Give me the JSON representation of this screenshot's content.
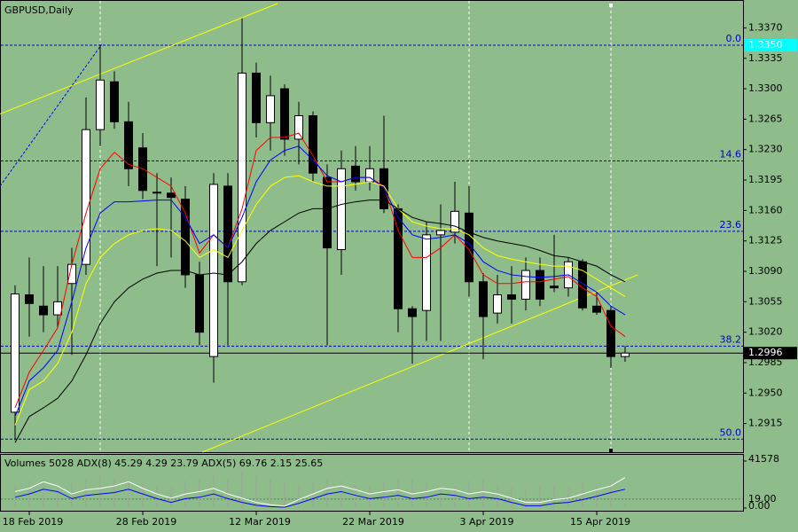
{
  "chart_data": [
    {
      "type": "candlestick",
      "title": "GBPUSD,Daily",
      "categories": [
        null,
        "18 Feb 2019",
        null,
        null,
        null,
        null,
        null,
        null,
        null,
        "28 Feb 2019",
        null,
        null,
        null,
        null,
        null,
        null,
        null,
        "12 Mar 2019",
        null,
        null,
        null,
        null,
        null,
        null,
        null,
        "22 Mar 2019",
        null,
        null,
        null,
        null,
        null,
        null,
        null,
        "3 Apr 2019",
        null,
        null,
        null,
        null,
        null,
        null,
        null,
        "15 Apr 2019",
        null,
        null
      ],
      "open": [
        1.2928,
        1.3063,
        1.305,
        1.304,
        1.3076,
        1.3098,
        1.3253,
        1.3308,
        1.3262,
        1.3232,
        1.3181,
        1.318,
        1.3173,
        1.3086,
        1.2992,
        1.3188,
        1.3078,
        1.3318,
        1.3261,
        1.33,
        1.3242,
        1.3269,
        1.3198,
        1.3115,
        1.3211,
        1.3193,
        1.3208,
        1.3162,
        1.3047,
        1.3045,
        1.3132,
        1.3135,
        1.3157,
        1.3078,
        1.3042,
        1.3063,
        1.3058,
        1.3091,
        1.3073,
        1.3071,
        1.3101,
        1.305,
        1.3045,
        1.2992
      ],
      "high": [
        1.3074,
        1.3106,
        1.3096,
        1.3096,
        1.3117,
        1.329,
        1.3351,
        1.332,
        1.3285,
        1.3249,
        1.3203,
        1.3198,
        1.3188,
        1.3101,
        1.3203,
        1.3203,
        1.3381,
        1.333,
        1.3315,
        1.3305,
        1.3285,
        1.3274,
        1.3213,
        1.3229,
        1.3234,
        1.3234,
        1.3269,
        1.3167,
        1.305,
        1.3147,
        1.3167,
        1.3193,
        1.3188,
        1.3088,
        1.3086,
        1.3096,
        1.3106,
        1.3106,
        1.3132,
        1.3106,
        1.3104,
        1.3066,
        1.305,
        1.3004
      ],
      "low": [
        1.2896,
        1.3015,
        1.302,
        1.3025,
        1.2994,
        1.3086,
        1.3234,
        1.3254,
        1.3188,
        1.3173,
        1.3096,
        1.3106,
        1.3071,
        1.3005,
        1.2962,
        1.3005,
        1.3074,
        1.3244,
        1.3229,
        1.3223,
        1.3213,
        1.3193,
        1.3005,
        1.3086,
        1.3183,
        1.3183,
        1.3157,
        1.302,
        1.2984,
        1.301,
        1.301,
        1.3122,
        1.3061,
        1.2989,
        1.303,
        1.303,
        1.3045,
        1.305,
        1.3066,
        1.3061,
        1.3045,
        1.304,
        1.2979,
        1.2986
      ],
      "close": [
        1.3064,
        1.3053,
        1.304,
        1.3055,
        1.3098,
        1.3253,
        1.331,
        1.3262,
        1.3208,
        1.3183,
        1.318,
        1.3175,
        1.3086,
        1.302,
        1.319,
        1.3078,
        1.3318,
        1.3261,
        1.3292,
        1.3242,
        1.3269,
        1.3203,
        1.3117,
        1.3208,
        1.3193,
        1.3208,
        1.3162,
        1.3047,
        1.3038,
        1.3132,
        1.3137,
        1.3159,
        1.3078,
        1.3038,
        1.3063,
        1.3058,
        1.3091,
        1.3058,
        1.3071,
        1.3101,
        1.3048,
        1.3043,
        1.2992,
        1.2996
      ],
      "up_color": "#ffffff",
      "down_color": "#000000",
      "series": [
        {
          "color": "#ff0000",
          "values": [
            1.2933,
            1.2974,
            1.2999,
            1.3025,
            1.3098,
            1.3157,
            1.3208,
            1.3227,
            1.3213,
            1.3208,
            1.3198,
            1.3188,
            1.3157,
            1.3111,
            1.3132,
            1.3117,
            1.3162,
            1.3229,
            1.3244,
            1.3244,
            1.3249,
            1.3223,
            1.3193,
            1.3193,
            1.3198,
            1.3198,
            1.3188,
            1.3137,
            1.3106,
            1.3106,
            1.3117,
            1.3132,
            1.3115,
            1.3086,
            1.3076,
            1.3076,
            1.3078,
            1.3078,
            1.3081,
            1.3084,
            1.3071,
            1.3061,
            1.3027,
            1.3015
          ]
        },
        {
          "color": "#0000ff",
          "values": [
            1.2923,
            1.2964,
            1.2979,
            1.2999,
            1.3055,
            1.3117,
            1.3157,
            1.317,
            1.317,
            1.3171,
            1.3172,
            1.3172,
            1.3152,
            1.3122,
            1.3132,
            1.3117,
            1.3152,
            1.3193,
            1.3218,
            1.3229,
            1.3234,
            1.3218,
            1.32,
            1.3193,
            1.3198,
            1.3198,
            1.3186,
            1.3152,
            1.3132,
            1.3127,
            1.3129,
            1.3132,
            1.3122,
            1.3101,
            1.3091,
            1.3086,
            1.3084,
            1.3083,
            1.3084,
            1.3086,
            1.3076,
            1.3066,
            1.305,
            1.304
          ]
        },
        {
          "color": "#ffff00",
          "values": [
            1.2913,
            1.2954,
            1.2964,
            1.2984,
            1.302,
            1.3076,
            1.3106,
            1.3122,
            1.3132,
            1.3137,
            1.3139,
            1.3137,
            1.3125,
            1.3106,
            1.3115,
            1.3106,
            1.3137,
            1.3167,
            1.3188,
            1.3198,
            1.32,
            1.3193,
            1.3188,
            1.3188,
            1.319,
            1.3193,
            1.3188,
            1.3162,
            1.3147,
            1.3142,
            1.3139,
            1.3139,
            1.3132,
            1.3117,
            1.3108,
            1.3104,
            1.3101,
            1.3098,
            1.3096,
            1.3096,
            1.3091,
            1.3081,
            1.3071,
            1.3061
          ]
        },
        {
          "color": "#000000",
          "values": [
            1.2893,
            1.2923,
            1.2933,
            1.2944,
            1.2964,
            1.2994,
            1.303,
            1.3055,
            1.3071,
            1.3081,
            1.3088,
            1.3091,
            1.3091,
            1.3086,
            1.3088,
            1.3086,
            1.3101,
            1.3122,
            1.3137,
            1.3147,
            1.3157,
            1.3162,
            1.3162,
            1.3167,
            1.317,
            1.3172,
            1.3172,
            1.3162,
            1.3152,
            1.3147,
            1.3145,
            1.3142,
            1.3135,
            1.3129,
            1.3125,
            1.3122,
            1.3119,
            1.3114,
            1.3108,
            1.3106,
            1.3101,
            1.3096,
            1.3086,
            1.3078
          ]
        }
      ],
      "trendlines": [
        {
          "color": "#ffff00",
          "x": [
            -1.06,
            18.5
          ],
          "y": [
            1.3271,
            1.3398
          ]
        },
        {
          "color": "#ffff00",
          "x": [
            13.2,
            43.9
          ],
          "y": [
            1.2882,
            1.3086
          ]
        },
        {
          "color": "#0000ff",
          "x": [
            -1.06,
            6.1
          ],
          "y": [
            1.3188,
            1.3351
          ]
        }
      ],
      "fib_levels": [
        {
          "label": "0.0",
          "value": 1.335
        },
        {
          "label": "14.6",
          "value": 1.3217
        },
        {
          "label": "23.6",
          "value": 1.3136
        },
        {
          "label": "38.2",
          "value": 1.3004
        },
        {
          "label": "50.0",
          "value": 1.2897
        }
      ],
      "fib_color": "#0000c8",
      "highlight_price": {
        "value": 1.335,
        "label": "1.3350"
      },
      "last_price": 1.2996,
      "ylim": [
        1.2882,
        1.3399
      ],
      "yticks": [
        1.2915,
        {
          "value": 1.295,
          "label": "1.2950"
        },
        1.2985,
        {
          "value": 1.302,
          "label": "1.3020"
        },
        1.3055,
        {
          "value": 1.309,
          "label": "1.3090"
        },
        1.3125,
        {
          "value": 1.316,
          "label": "1.3160"
        },
        1.3195,
        {
          "value": 1.323,
          "label": "1.3230"
        },
        1.3265,
        {
          "value": 1.33,
          "label": "1.3300"
        },
        1.3335,
        {
          "value": 1.337,
          "label": "1.3370"
        }
      ]
    },
    {
      "type": "volume-adx",
      "title": "Volumes 5028 ADX(8) 45.29 4.29 23.79 ADX(5) 69.76 2.15 25.65",
      "values": [
        21000,
        24000,
        19000,
        18000,
        23000,
        27000,
        30000,
        26000,
        25000,
        22000,
        20000,
        18000,
        24000,
        26000,
        29000,
        27000,
        32000,
        28000,
        25000,
        23000,
        21000,
        22000,
        26000,
        24000,
        20000,
        19000,
        23000,
        27000,
        25000,
        22000,
        20000,
        19000,
        24000,
        26000,
        21000,
        18000,
        17000,
        19000,
        20000,
        18000,
        22000,
        21000,
        25000,
        5028
      ],
      "color": "#9aa89a",
      "ylim": [
        0,
        41578
      ],
      "yticks": [
        41578,
        {
          "value": 0,
          "label": "0.00"
        }
      ],
      "series": [
        {
          "color": "#ffffff",
          "axis": "y2",
          "values": [
            35,
            42,
            56,
            47,
            30,
            39,
            42,
            47,
            56,
            42,
            30,
            21,
            30,
            35,
            42,
            30,
            21,
            12,
            7,
            4,
            18,
            30,
            42,
            47,
            39,
            30,
            35,
            39,
            30,
            35,
            42,
            39,
            30,
            35,
            30,
            21,
            12,
            12,
            18,
            21,
            30,
            39,
            47,
            65
          ]
        },
        {
          "color": "#0000ff",
          "axis": "y2",
          "values": [
            23,
            30,
            40,
            35,
            20,
            27,
            30,
            33,
            40,
            30,
            20,
            12,
            20,
            23,
            30,
            20,
            12,
            6,
            3,
            2,
            10,
            20,
            30,
            35,
            27,
            20,
            23,
            27,
            20,
            23,
            30,
            27,
            20,
            23,
            20,
            12,
            5,
            5,
            10,
            12,
            18,
            25,
            33,
            40
          ]
        }
      ],
      "y2lim": [
        0,
        100
      ],
      "y2ticks": [
        {
          "value": 19,
          "label": "19.00"
        }
      ]
    }
  ]
}
